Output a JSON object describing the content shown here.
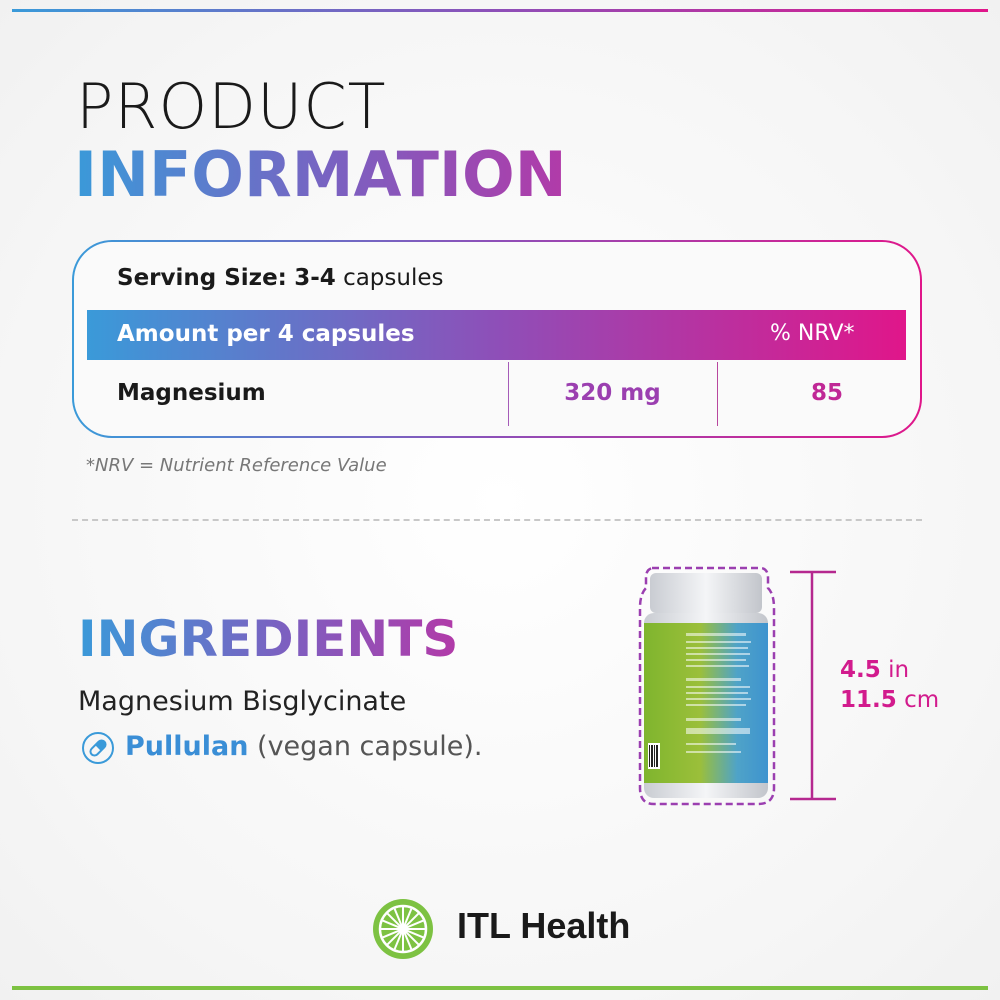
{
  "header": {
    "line1": "PRODUCT",
    "line2": "INFORMATION"
  },
  "table": {
    "serving_label": "Serving Size:",
    "serving_value": "3-4",
    "serving_unit": "capsules",
    "header_amount": "Amount per 4 capsules",
    "header_nrv": "% NRV*",
    "rows": [
      {
        "nutrient": "Magnesium",
        "amount": "320 mg",
        "nrv": "85"
      }
    ],
    "footnote": "*NRV = Nutrient Reference Value"
  },
  "ingredients": {
    "title": "INGREDIENTS",
    "items": [
      "Magnesium Bisglycinate"
    ],
    "capsule_name": "Pullulan",
    "capsule_note": "(vegan capsule).",
    "capsule_icon": "capsule-icon"
  },
  "dimensions": {
    "in_value": "4.5",
    "in_unit": "in",
    "cm_value": "11.5",
    "cm_unit": "cm"
  },
  "brand": {
    "name": "ITL Health"
  },
  "colors": {
    "blue": "#3a9ad9",
    "purple": "#8e4fb8",
    "magenta": "#e0168a",
    "green": "#7dc242"
  }
}
